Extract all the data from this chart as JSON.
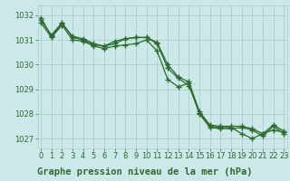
{
  "line1": [
    1031.8,
    1031.2,
    1031.7,
    1031.1,
    1031.0,
    1030.8,
    1030.75,
    1030.85,
    1031.05,
    1031.1,
    1031.1,
    1030.85,
    1029.85,
    1029.45,
    1029.15,
    1028.05,
    1027.5,
    1027.45,
    1027.45,
    1027.2,
    1027.0,
    1027.2,
    1027.35,
    1027.25
  ],
  "line2": [
    1031.9,
    1031.15,
    1031.65,
    1031.15,
    1031.05,
    1030.85,
    1030.75,
    1030.95,
    1031.05,
    1031.1,
    1031.1,
    1030.9,
    1030.0,
    1029.5,
    1029.3,
    1028.1,
    1027.55,
    1027.5,
    1027.5,
    1027.5,
    1027.4,
    1027.2,
    1027.55,
    1027.3
  ],
  "line3": [
    1031.7,
    1031.1,
    1031.6,
    1031.0,
    1030.95,
    1030.75,
    1030.65,
    1030.75,
    1030.8,
    1030.85,
    1031.0,
    1030.55,
    1029.4,
    1029.1,
    1029.25,
    1028.0,
    1027.45,
    1027.4,
    1027.4,
    1027.45,
    1027.35,
    1027.1,
    1027.5,
    1027.2
  ],
  "x": [
    0,
    1,
    2,
    3,
    4,
    5,
    6,
    7,
    8,
    9,
    10,
    11,
    12,
    13,
    14,
    15,
    16,
    17,
    18,
    19,
    20,
    21,
    22,
    23
  ],
  "ylim": [
    1026.6,
    1032.4
  ],
  "xlim": [
    -0.3,
    23.3
  ],
  "yticks": [
    1027,
    1028,
    1029,
    1030,
    1031,
    1032
  ],
  "xticks": [
    0,
    1,
    2,
    3,
    4,
    5,
    6,
    7,
    8,
    9,
    10,
    11,
    12,
    13,
    14,
    15,
    16,
    17,
    18,
    19,
    20,
    21,
    22,
    23
  ],
  "line_color": "#2d6a2d",
  "bg_color": "#cce8e8",
  "grid_color": "#aacece",
  "xlabel": "Graphe pression niveau de la mer (hPa)",
  "xlabel_color": "#2d6a2d",
  "xlabel_bg": "#b0d4d4",
  "marker": "+",
  "linewidth": 0.9,
  "markersize": 4,
  "markeredgewidth": 1.0,
  "tick_color": "#2d6a2d",
  "tick_fontsize": 6,
  "xlabel_fontsize": 7.5
}
